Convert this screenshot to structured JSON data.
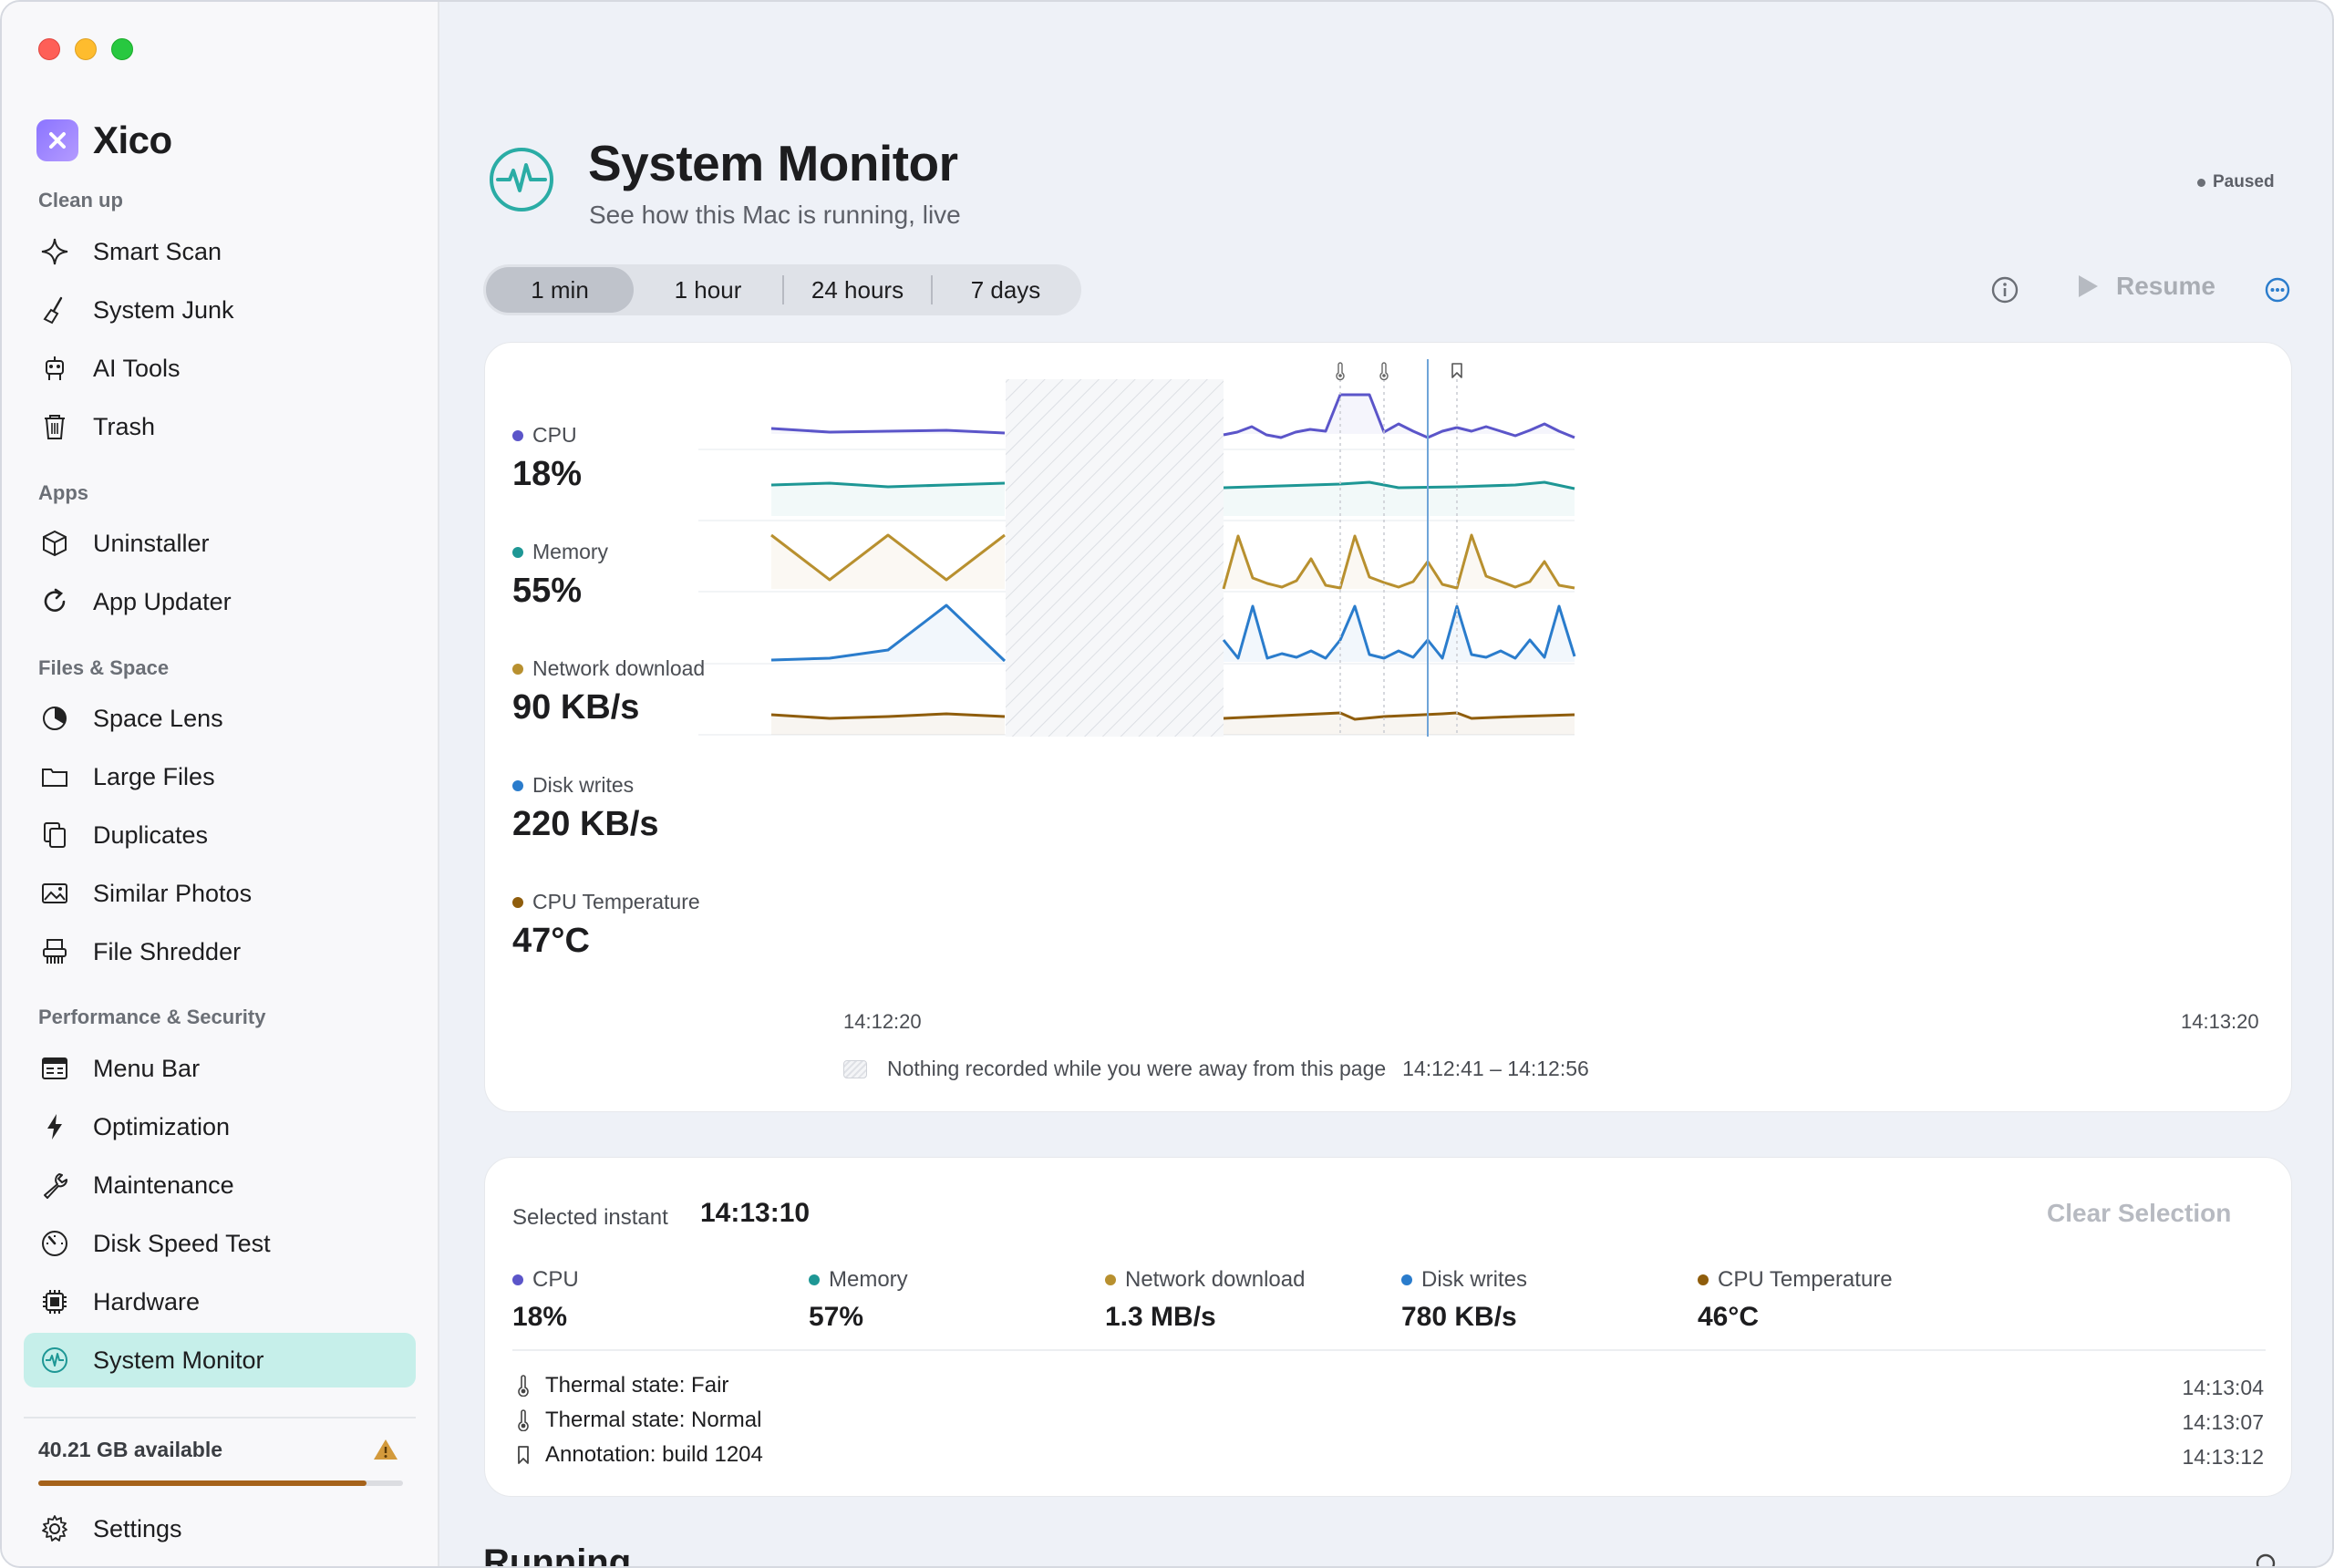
{
  "app": {
    "name": "Xico"
  },
  "sidebar": {
    "sections": [
      {
        "title": "Clean up",
        "items": [
          "Smart Scan",
          "System Junk",
          "AI Tools",
          "Trash"
        ]
      },
      {
        "title": "Apps",
        "items": [
          "Uninstaller",
          "App Updater"
        ]
      },
      {
        "title": "Files & Space",
        "items": [
          "Space Lens",
          "Large Files",
          "Duplicates",
          "Similar Photos",
          "File Shredder"
        ]
      },
      {
        "title": "Performance & Security",
        "items": [
          "Menu Bar",
          "Optimization",
          "Maintenance",
          "Disk Speed Test",
          "Hardware",
          "System Monitor"
        ]
      }
    ],
    "active_item": "System Monitor",
    "storage": {
      "text": "40.21 GB available",
      "used_fraction": 0.9,
      "bar_color": "#a5621a"
    },
    "settings_label": "Settings"
  },
  "header": {
    "title": "System Monitor",
    "subtitle": "See how this Mac is running, live",
    "status": "Paused"
  },
  "toolbar": {
    "ranges": [
      "1 min",
      "1 hour",
      "24 hours",
      "7 days"
    ],
    "selected_range": "1 min",
    "resume_label": "Resume"
  },
  "metrics": [
    {
      "name": "CPU",
      "value": "18%",
      "color": "#5b55c9"
    },
    {
      "name": "Memory",
      "value": "55%",
      "color": "#1e9795"
    },
    {
      "name": "Network download",
      "value": "90 KB/s",
      "color": "#b8902f"
    },
    {
      "name": "Disk writes",
      "value": "220 KB/s",
      "color": "#2a7ccc"
    },
    {
      "name": "CPU Temperature",
      "value": "47°C",
      "color": "#8f5d0c"
    }
  ],
  "chart": {
    "time_start": "14:12:20",
    "time_end": "14:13:20",
    "gap_note": "Nothing recorded while you were away from this page",
    "gap_range": "14:12:41 – 14:12:56"
  },
  "chart_data": {
    "type": "line",
    "x_range": [
      "14:12:20",
      "14:13:20"
    ],
    "gap": [
      "14:12:41",
      "14:12:56"
    ],
    "series": [
      {
        "name": "CPU",
        "unit": "%"
      },
      {
        "name": "Memory",
        "unit": "%"
      },
      {
        "name": "Network download",
        "unit": "KB/s"
      },
      {
        "name": "Disk writes",
        "unit": "KB/s"
      },
      {
        "name": "CPU Temperature",
        "unit": "°C"
      }
    ],
    "event_markers": [
      "14:13:04",
      "14:13:07",
      "14:13:12"
    ],
    "selected_instant": "14:13:10"
  },
  "selection": {
    "label": "Selected instant",
    "time": "14:13:10",
    "clear_label": "Clear Selection",
    "values": [
      {
        "name": "CPU",
        "value": "18%",
        "color": "#5b55c9"
      },
      {
        "name": "Memory",
        "value": "57%",
        "color": "#1e9795"
      },
      {
        "name": "Network download",
        "value": "1.3 MB/s",
        "color": "#b8902f"
      },
      {
        "name": "Disk writes",
        "value": "780 KB/s",
        "color": "#2a7ccc"
      },
      {
        "name": "CPU Temperature",
        "value": "46°C",
        "color": "#8f5d0c"
      }
    ],
    "events": [
      {
        "icon": "thermometer-icon",
        "text": "Thermal state: Fair",
        "time": "14:13:04"
      },
      {
        "icon": "thermometer-icon",
        "text": "Thermal state: Normal",
        "time": "14:13:07"
      },
      {
        "icon": "bookmark-icon",
        "text": "Annotation: build 1204",
        "time": "14:13:12"
      }
    ]
  },
  "running": {
    "title": "Running"
  }
}
